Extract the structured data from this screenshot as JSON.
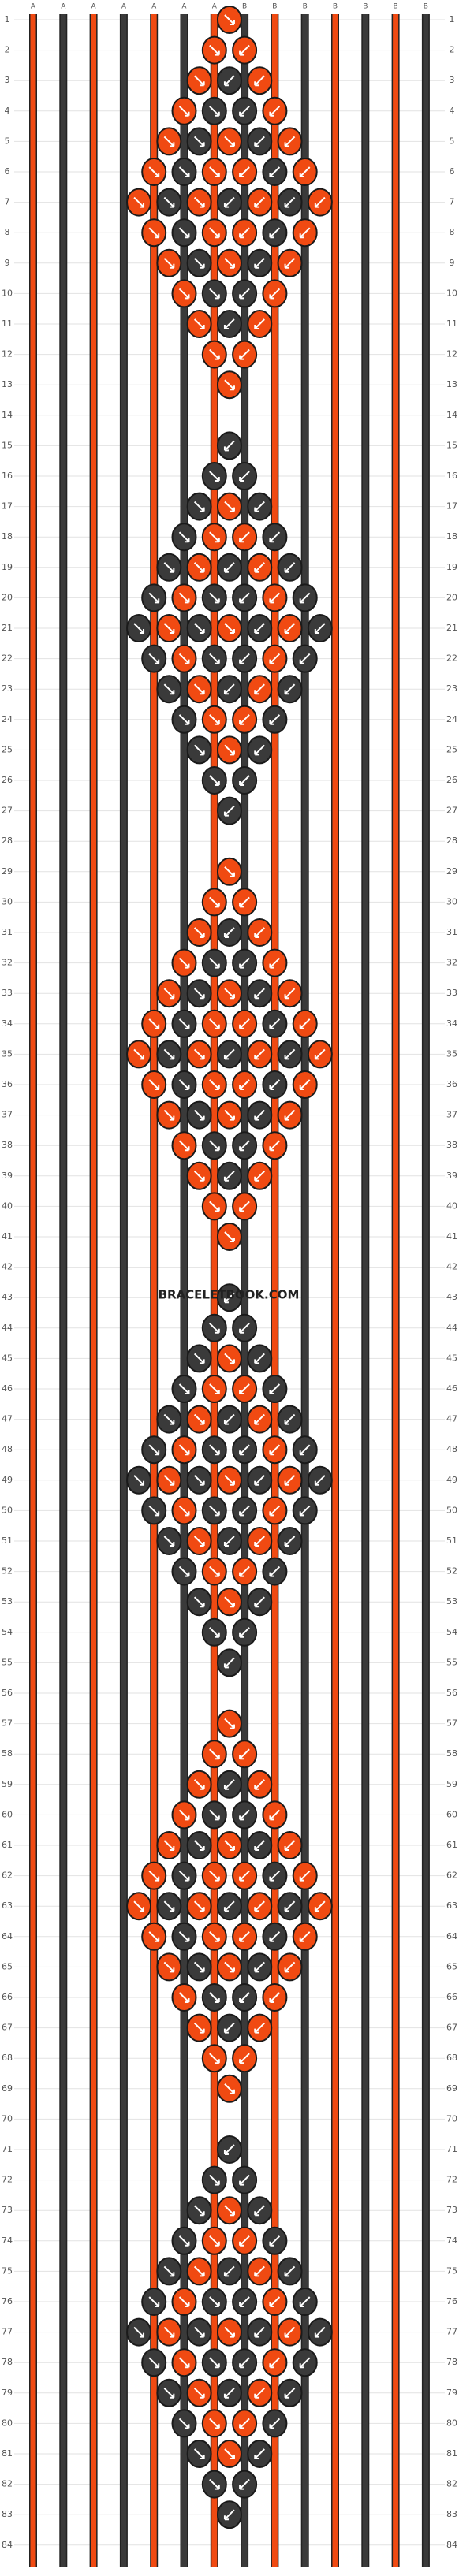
{
  "header": {
    "strings": [
      "A",
      "A",
      "A",
      "A",
      "A",
      "A",
      "A",
      "B",
      "B",
      "B",
      "B",
      "B",
      "B",
      "B"
    ]
  },
  "rows": [
    1,
    2,
    3,
    4,
    5,
    6,
    7,
    8,
    9,
    10,
    11,
    12,
    13,
    14,
    15,
    16,
    17,
    18,
    19,
    20,
    21,
    22,
    23,
    24,
    25,
    26,
    27,
    28,
    29,
    30,
    31,
    32,
    33,
    34,
    35,
    36,
    37,
    38,
    39,
    40,
    41,
    42,
    43,
    44,
    45,
    46,
    47,
    48,
    49,
    50,
    51,
    52,
    53,
    54,
    55,
    56,
    57,
    58,
    59,
    60,
    61,
    62,
    63,
    64,
    65,
    66,
    67,
    68,
    69,
    70,
    71,
    72,
    73,
    74,
    75,
    76,
    77,
    78,
    79,
    80,
    81,
    82,
    83,
    84
  ],
  "watermark": "BRACELETBOOK.COM"
}
